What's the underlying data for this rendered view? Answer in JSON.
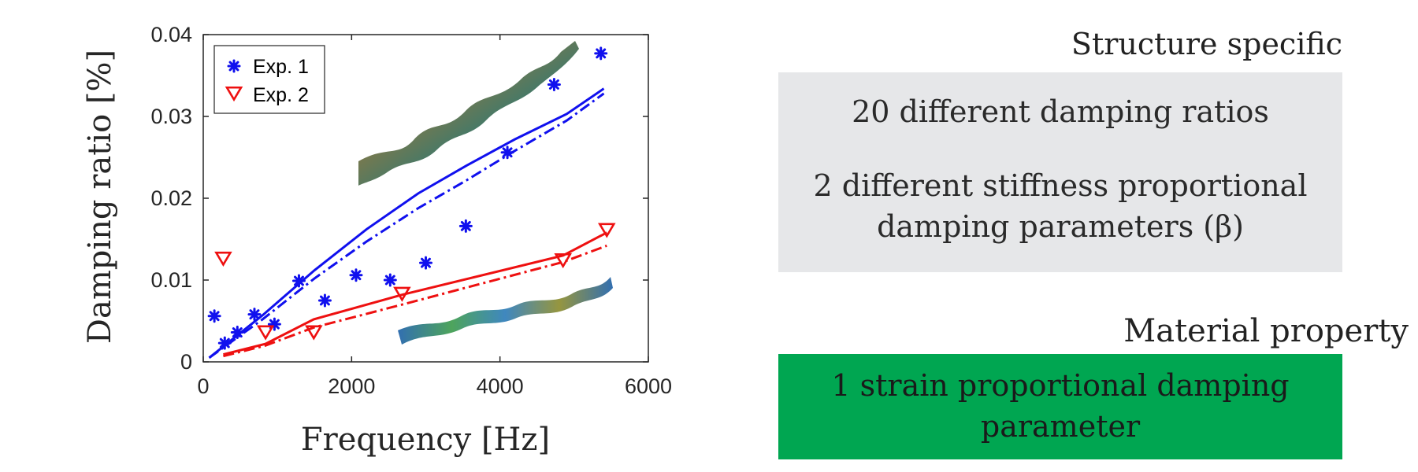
{
  "chart_data": {
    "type": "scatter",
    "xlabel": "Frequency [Hz]",
    "ylabel": "Damping ratio [%]",
    "xlim": [
      0,
      6000
    ],
    "ylim": [
      0,
      0.04
    ],
    "xticks": [
      0,
      2000,
      4000,
      6000
    ],
    "xtick_labels": [
      "0",
      "2000",
      "4000",
      "6000"
    ],
    "yticks": [
      0,
      0.01,
      0.02,
      0.03,
      0.04
    ],
    "ytick_labels": [
      "0",
      "0.01",
      "0.02",
      "0.03",
      "0.04"
    ],
    "legend_position": "top-left",
    "series": [
      {
        "name": "Exp. 1",
        "marker": "asterisk",
        "color": "#1010ee",
        "x": [
          150,
          290,
          460,
          690,
          960,
          1290,
          1640,
          2060,
          2520,
          3000,
          3540,
          4100,
          4730,
          5360
        ],
        "y": [
          0.0056,
          0.0023,
          0.0036,
          0.0058,
          0.0046,
          0.0099,
          0.0075,
          0.0106,
          0.01,
          0.0121,
          0.0166,
          0.0256,
          0.0339,
          0.0377
        ]
      },
      {
        "name": "Exp. 2",
        "marker": "triangle-down",
        "color": "#ee1010",
        "x": [
          270,
          840,
          1490,
          2680,
          4850,
          5440
        ],
        "y": [
          0.0127,
          0.0037,
          0.0037,
          0.0084,
          0.0125,
          0.0162
        ]
      }
    ],
    "fit_lines": [
      {
        "color": "#1010ee",
        "style": "solid",
        "x": [
          80,
          800,
          1500,
          2200,
          2900,
          3550,
          4200,
          4900,
          5400
        ],
        "y": [
          0.0005,
          0.0057,
          0.0112,
          0.0162,
          0.0206,
          0.024,
          0.0272,
          0.0303,
          0.0334
        ]
      },
      {
        "color": "#1010ee",
        "style": "dashdot",
        "x": [
          80,
          800,
          1500,
          2200,
          2900,
          3550,
          4200,
          4900,
          5400
        ],
        "y": [
          0.0005,
          0.0052,
          0.0102,
          0.0147,
          0.0188,
          0.0222,
          0.0258,
          0.0295,
          0.0328
        ]
      },
      {
        "color": "#ee1010",
        "style": "solid",
        "x": [
          270,
          840,
          1490,
          2680,
          4850,
          5440
        ],
        "y": [
          0.0009,
          0.0022,
          0.0052,
          0.0082,
          0.013,
          0.0158
        ]
      },
      {
        "color": "#ee1010",
        "style": "dashdot",
        "x": [
          270,
          840,
          1490,
          2680,
          4850,
          5440
        ],
        "y": [
          0.0007,
          0.002,
          0.0042,
          0.007,
          0.0122,
          0.0142
        ]
      }
    ]
  },
  "text_panel": {
    "structure_heading": "Structure specific",
    "grey_line1": "20 different damping ratios",
    "grey_line2a": "2 different stiffness proportional",
    "grey_line2b": "damping parameters (β)",
    "material_heading": "Material property",
    "green_line1": "1 strain proportional damping",
    "green_line2": "parameter"
  },
  "colors": {
    "grey_box": "#e6e7e9",
    "green_box": "#00a651",
    "blue": "#1010ee",
    "red": "#ee1010"
  }
}
